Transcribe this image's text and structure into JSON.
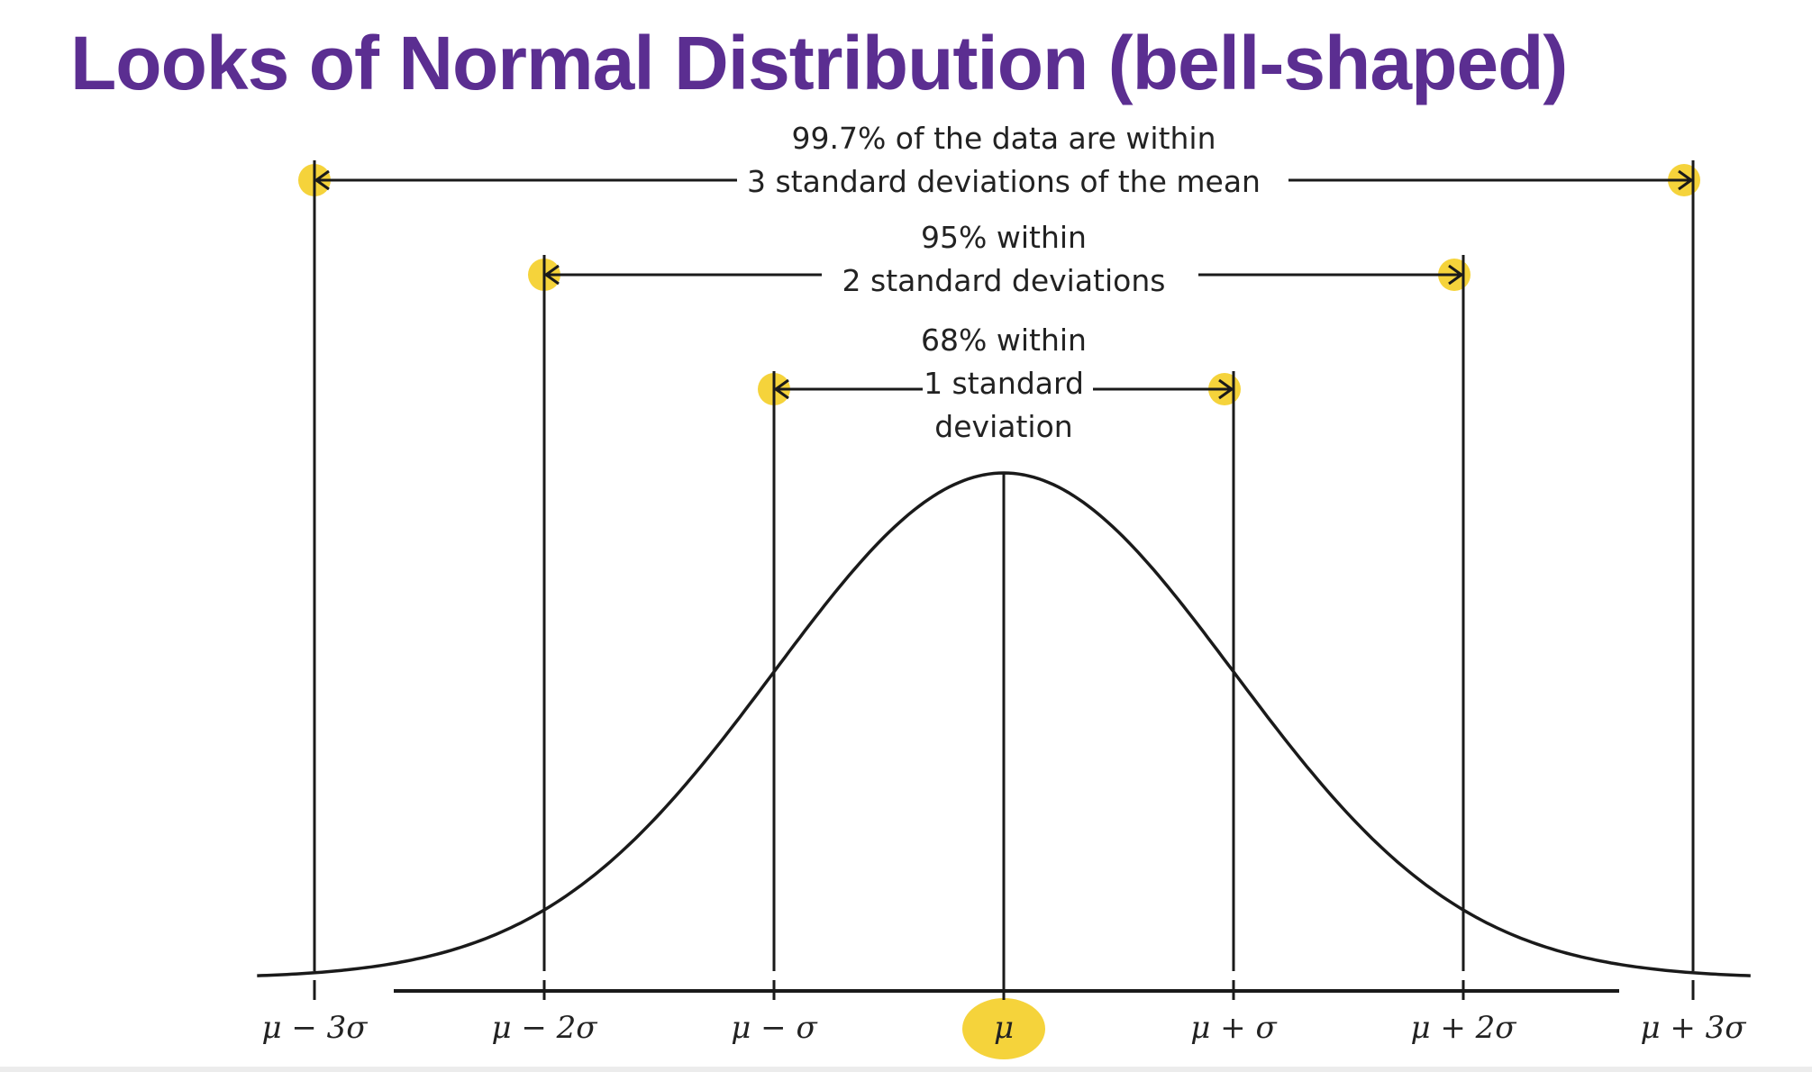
{
  "title": "Looks of Normal Distribution (bell-shaped)",
  "chart_data": {
    "type": "line",
    "title": "Looks of Normal Distribution (bell-shaped)",
    "x_tick_labels": [
      "μ − 3σ",
      "μ − 2σ",
      "μ − σ",
      "μ",
      "μ + σ",
      "μ + 2σ",
      "μ + 3σ"
    ],
    "x_tick_values": [
      -3,
      -2,
      -1,
      0,
      1,
      2,
      3
    ],
    "xlim": [
      -3.25,
      3.25
    ],
    "curve": "standard normal density",
    "annotations": [
      {
        "range": [
          -3,
          3
        ],
        "lines": [
          "99.7% of the data are within",
          "3 standard deviations of the mean"
        ]
      },
      {
        "range": [
          -2,
          2
        ],
        "lines": [
          "95% within",
          "2 standard deviations"
        ]
      },
      {
        "range": [
          -1,
          1
        ],
        "lines": [
          "68% within",
          "1 standard",
          "deviation"
        ]
      }
    ],
    "highlight_color": "#f5d33b"
  },
  "colors": {
    "title": "#5b2e91",
    "ink": "#1a1a1a",
    "highlight": "#f5d33b"
  }
}
